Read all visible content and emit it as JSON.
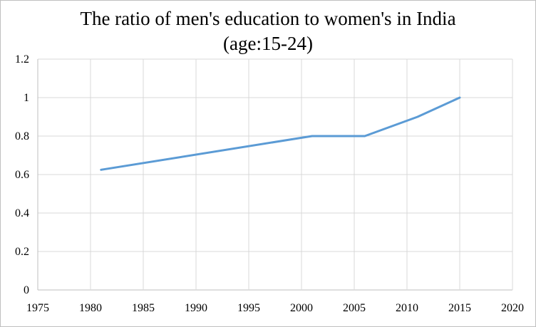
{
  "chart_data": {
    "type": "line",
    "title": "The ratio of men's education to women's in India",
    "subtitle": "(age:15-24)",
    "xlabel": "",
    "ylabel": "",
    "xlim": [
      1975,
      2020
    ],
    "ylim": [
      0,
      1.2
    ],
    "x_ticks": [
      "1975",
      "1980",
      "1985",
      "1990",
      "1995",
      "2000",
      "2005",
      "2010",
      "2015",
      "2020"
    ],
    "y_ticks": [
      "0",
      "0.2",
      "0.4",
      "0.6",
      "0.8",
      "1",
      "1.2"
    ],
    "grid": true,
    "legend": "none",
    "series": [
      {
        "color": "#5b9bd5",
        "x": [
          1981,
          2001,
          2006,
          2011,
          2015
        ],
        "y": [
          0.625,
          0.8,
          0.8,
          0.9,
          1.0
        ]
      }
    ]
  }
}
